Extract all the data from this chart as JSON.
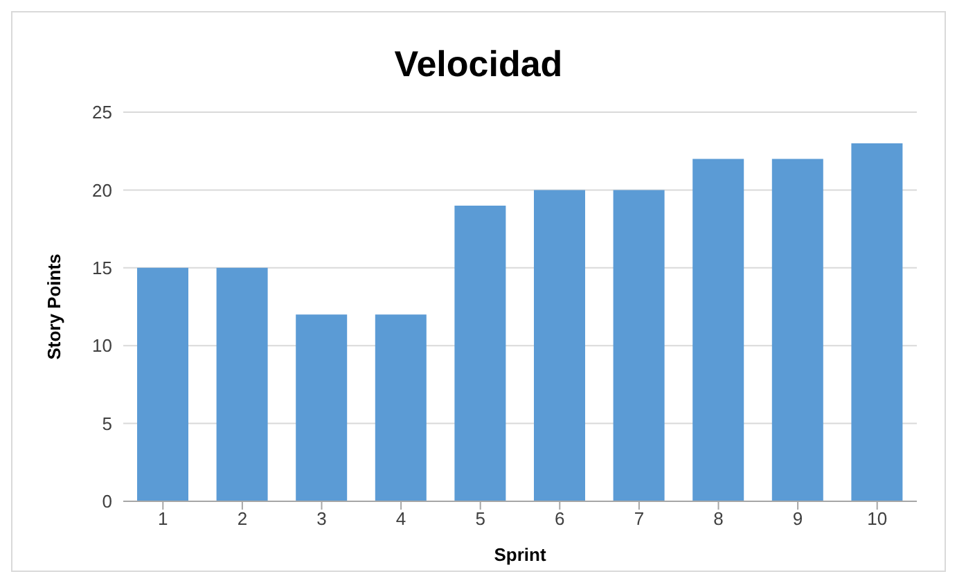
{
  "chart_data": {
    "type": "bar",
    "title": "Velocidad",
    "xlabel": "Sprint",
    "ylabel": "Story Points",
    "categories": [
      "1",
      "2",
      "3",
      "4",
      "5",
      "6",
      "7",
      "8",
      "9",
      "10"
    ],
    "values": [
      15,
      15,
      12,
      12,
      19,
      20,
      20,
      22,
      22,
      23
    ],
    "color": "#5b9bd5",
    "ylim": [
      0,
      25
    ],
    "yticks": [
      0,
      5,
      10,
      15,
      20,
      25
    ],
    "grid": "y"
  }
}
